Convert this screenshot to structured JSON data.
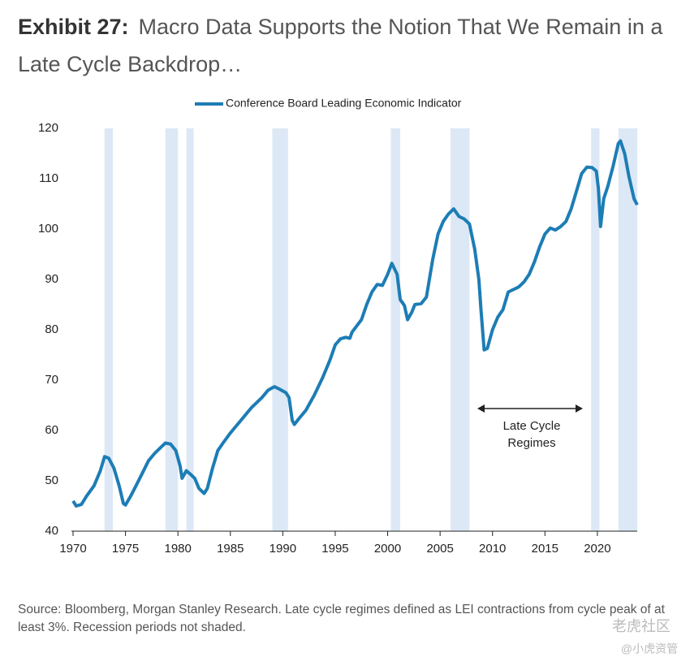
{
  "chart_data": {
    "type": "line",
    "title_label": "Exhibit 27:",
    "title": "Macro Data Supports the Notion That We Remain in a Late Cycle Backdrop…",
    "annotation": [
      "Late Cycle",
      "Regimes"
    ],
    "source": "Source: Bloomberg, Morgan Stanley Research. Late cycle regimes defined as LEI contractions from cycle peak of at least 3%. Recession periods not shaded.",
    "watermark": [
      "老虎社区",
      "@小虎资管"
    ],
    "xlim": [
      1970,
      2023.8
    ],
    "xticks": [
      1970,
      1975,
      1980,
      1985,
      1990,
      1995,
      2000,
      2005,
      2010,
      2015,
      2020
    ],
    "ylim": [
      40,
      120
    ],
    "yticks": [
      40,
      50,
      60,
      70,
      80,
      90,
      100,
      110,
      120
    ],
    "shaded_color": "#dce8f5",
    "shaded_regions": [
      [
        1973.0,
        1973.8
      ],
      [
        1978.8,
        1980.0
      ],
      [
        1980.8,
        1981.5
      ],
      [
        1989.0,
        1990.5
      ],
      [
        2000.3,
        2001.2
      ],
      [
        2006.0,
        2007.8
      ],
      [
        2019.4,
        2020.2
      ],
      [
        2022.0,
        2023.8
      ]
    ],
    "series": [
      {
        "name": "Conference Board Leading Economic Indicator",
        "color": "#1d7db5",
        "x": [
          1970.0,
          1970.3,
          1970.8,
          1971.3,
          1972.0,
          1972.6,
          1973.0,
          1973.4,
          1973.9,
          1974.4,
          1974.8,
          1975.0,
          1975.5,
          1976.0,
          1976.6,
          1977.2,
          1977.8,
          1978.3,
          1978.8,
          1979.3,
          1979.8,
          1980.2,
          1980.4,
          1980.8,
          1981.2,
          1981.6,
          1982.0,
          1982.5,
          1982.8,
          1983.3,
          1983.8,
          1984.3,
          1985.0,
          1986.0,
          1987.0,
          1988.0,
          1988.6,
          1989.2,
          1989.7,
          1990.3,
          1990.6,
          1990.9,
          1991.1,
          1991.6,
          1992.2,
          1993.0,
          1993.8,
          1994.5,
          1995.0,
          1995.5,
          1996.0,
          1996.4,
          1996.6,
          1997.5,
          1998.0,
          1998.5,
          1999.0,
          1999.5,
          2000.0,
          2000.4,
          2000.9,
          2001.2,
          2001.6,
          2001.9,
          2002.3,
          2002.6,
          2003.2,
          2003.7,
          2004.3,
          2004.8,
          2005.3,
          2005.8,
          2006.3,
          2006.8,
          2007.3,
          2007.8,
          2008.3,
          2008.7,
          2008.9,
          2009.2,
          2009.5,
          2010.0,
          2010.5,
          2011.0,
          2011.5,
          2012.0,
          2012.5,
          2013.0,
          2013.5,
          2014.0,
          2014.5,
          2015.0,
          2015.5,
          2016.0,
          2016.5,
          2017.0,
          2017.5,
          2018.0,
          2018.5,
          2019.0,
          2019.5,
          2019.9,
          2020.1,
          2020.3,
          2020.6,
          2021.0,
          2021.5,
          2022.0,
          2022.2,
          2022.6,
          2023.0,
          2023.5,
          2023.8
        ],
        "values": [
          46,
          45,
          45.3,
          47,
          49,
          52,
          54.8,
          54.5,
          52.5,
          49,
          45.5,
          45.2,
          47,
          49,
          51.5,
          54,
          55.5,
          56.5,
          57.5,
          57.3,
          56,
          53,
          50.5,
          52,
          51.3,
          50.5,
          48.5,
          47.5,
          48.5,
          52.5,
          56,
          57.5,
          59.5,
          62,
          64.5,
          66.5,
          68,
          68.7,
          68.2,
          67.5,
          66.5,
          62,
          61.2,
          62.5,
          64,
          67,
          70.5,
          74,
          77,
          78.2,
          78.5,
          78.3,
          79.5,
          82,
          85,
          87.5,
          89,
          88.8,
          91,
          93.2,
          91,
          86,
          84.8,
          82,
          83.5,
          85,
          85.2,
          86.5,
          94,
          99,
          101.5,
          103,
          104,
          102.5,
          102,
          101,
          96,
          90,
          84,
          76,
          76.3,
          80,
          82.5,
          84,
          87.5,
          88,
          88.5,
          89.5,
          91,
          93.5,
          96.5,
          99,
          100.2,
          99.8,
          100.5,
          101.5,
          104,
          107.5,
          111,
          112.3,
          112.2,
          111.5,
          108,
          100.5,
          106,
          108.5,
          112.5,
          117,
          117.5,
          115,
          110.5,
          106,
          104.8
        ]
      }
    ]
  }
}
